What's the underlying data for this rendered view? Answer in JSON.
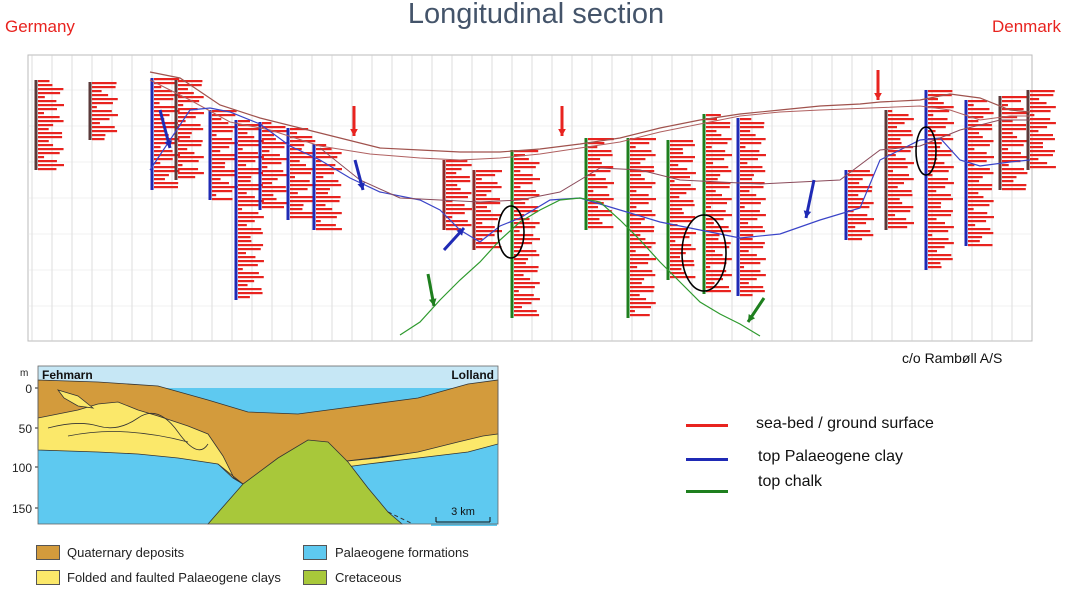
{
  "title": "Longitudinal section",
  "left_country": "Germany",
  "right_country": "Denmark",
  "credit": "c/o Rambøll A/S",
  "legend": [
    {
      "label": "sea-bed / ground surface",
      "color": "#e8231f"
    },
    {
      "label": "top Palaeogene clay",
      "color": "#1f2ab5"
    },
    {
      "label": "top chalk",
      "color": "#1e7f1e"
    }
  ],
  "cross_section": {
    "left_label": "Fehmarn",
    "right_label": "Lolland",
    "depth_unit": "m",
    "depth_ticks": [
      "0",
      "50",
      "100",
      "150"
    ],
    "scale_label": "3 km",
    "units": [
      {
        "label": "Quaternary deposits",
        "color": "#d39b3c"
      },
      {
        "label": "Folded and faulted Palaeogene clays",
        "color": "#fbe86a"
      },
      {
        "label": "Palaeogene formations",
        "color": "#5ec9f0"
      },
      {
        "label": "Cretaceous",
        "color": "#a8c83a"
      }
    ],
    "colors": {
      "sea": "#c6e7f5"
    }
  }
}
